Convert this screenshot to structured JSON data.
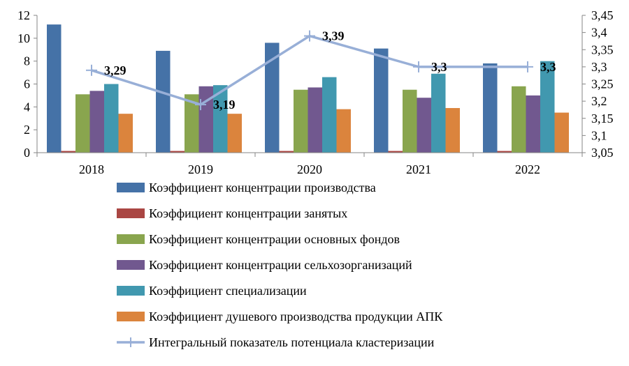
{
  "chart_data": {
    "type": "bar",
    "categories": [
      "2018",
      "2019",
      "2020",
      "2021",
      "2022"
    ],
    "y_left": {
      "min": 0,
      "max": 12,
      "step": 2,
      "ticks": [
        "0",
        "2",
        "4",
        "6",
        "8",
        "10",
        "12"
      ]
    },
    "y_right": {
      "min": 3.05,
      "max": 3.45,
      "step": 0.05,
      "ticks": [
        "3,05",
        "3,1",
        "3,15",
        "3,2",
        "3,25",
        "3,3",
        "3,35",
        "3,4",
        "3,45"
      ]
    },
    "grid": false,
    "legend_position": "bottom",
    "series": [
      {
        "name": "Коэффициент концентрации производства",
        "color": "#4572A7",
        "values": [
          11.2,
          8.9,
          9.6,
          9.1,
          7.8
        ]
      },
      {
        "name": "Коэффициент концентрации занятых",
        "color": "#AA4643",
        "values": [
          0.15,
          0.15,
          0.15,
          0.15,
          0.15
        ]
      },
      {
        "name": "Коэффициент концентрации основных фондов",
        "color": "#89A54E",
        "values": [
          5.1,
          5.1,
          5.5,
          5.5,
          5.8
        ]
      },
      {
        "name": "Коэффициент концентрации сельхозорганизаций",
        "color": "#71588F",
        "values": [
          5.4,
          5.8,
          5.7,
          4.8,
          5.0
        ]
      },
      {
        "name": "Коэффициент  специализации",
        "color": "#4198AF",
        "values": [
          6.0,
          5.9,
          6.6,
          6.9,
          8.0
        ]
      },
      {
        "name": "Коэффициент душевого производства продукции АПК",
        "color": "#DB843D",
        "values": [
          3.4,
          3.4,
          3.8,
          3.9,
          3.5
        ]
      }
    ],
    "line_series": {
      "name": "Интегральный показатель потенциала кластеризации",
      "color": "#98AFD7",
      "axis": "right",
      "values": [
        3.29,
        3.19,
        3.39,
        3.3,
        3.3
      ],
      "labels": [
        "3,29",
        "3,19",
        "3,39",
        "3,3",
        "3,3"
      ]
    }
  }
}
